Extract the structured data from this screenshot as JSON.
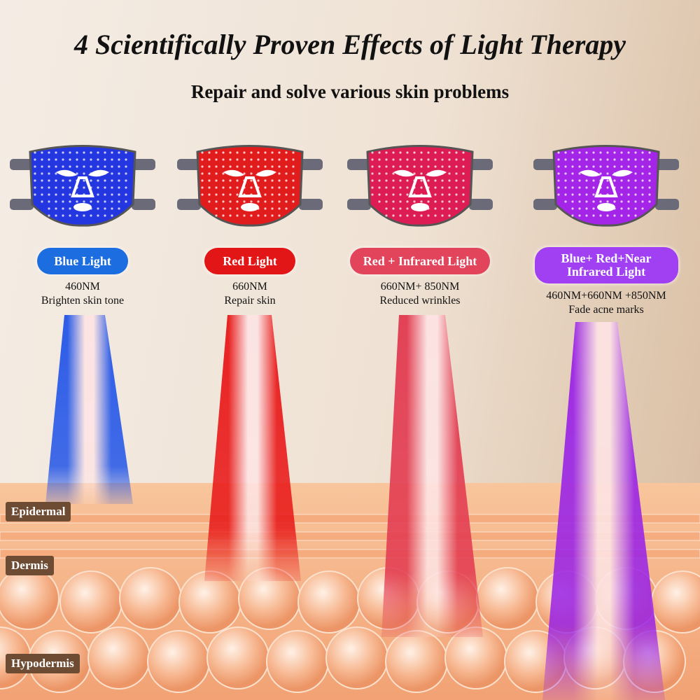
{
  "header": {
    "title": "4 Scientifically Proven Effects of Light Therapy",
    "subtitle": "Repair and solve various skin problems"
  },
  "panels": [
    {
      "label": "Blue Light",
      "wavelength": "460NM",
      "effect": "Brighten skin tone"
    },
    {
      "label": "Red Light",
      "wavelength": "660NM",
      "effect": "Repair skin"
    },
    {
      "label": "Red + Infrared Light",
      "wavelength": "660NM+ 850NM",
      "effect": "Reduced wrinkles"
    },
    {
      "label": "Blue+ Red+Near Infrared Light",
      "wavelength": "460NM+660NM +850NM",
      "effect": "Fade acne marks"
    }
  ],
  "layers": [
    "Epidermal",
    "Dermis",
    "Hypodermis"
  ]
}
